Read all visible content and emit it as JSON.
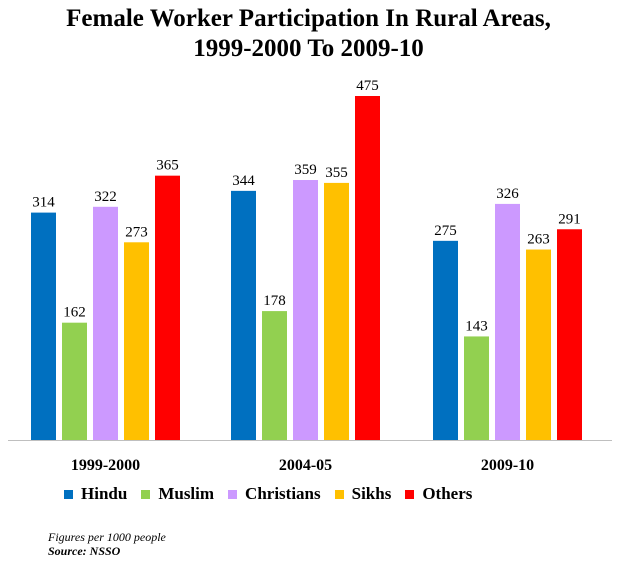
{
  "chart_data": {
    "type": "bar",
    "title": [
      "Female Worker Participation In Rural Areas,",
      "1999-2000 To 2009-10"
    ],
    "categories": [
      "1999-2000",
      "2004-05",
      "2009-10"
    ],
    "series": [
      {
        "name": "Hindu",
        "color": "#0070c0",
        "values": [
          314,
          344,
          275
        ]
      },
      {
        "name": "Muslim",
        "color": "#92d050",
        "values": [
          162,
          178,
          143
        ]
      },
      {
        "name": "Christians",
        "color": "#cc99ff",
        "values": [
          322,
          359,
          326
        ]
      },
      {
        "name": "Sikhs",
        "color": "#ffc000",
        "values": [
          273,
          355,
          263
        ]
      },
      {
        "name": "Others",
        "color": "#ff0000",
        "values": [
          365,
          475,
          291
        ]
      }
    ],
    "ylim": [
      0,
      475
    ],
    "grid": false,
    "legend": "bottom"
  },
  "footnote": "Figures per 1000 people",
  "source": "Source: NSSO"
}
